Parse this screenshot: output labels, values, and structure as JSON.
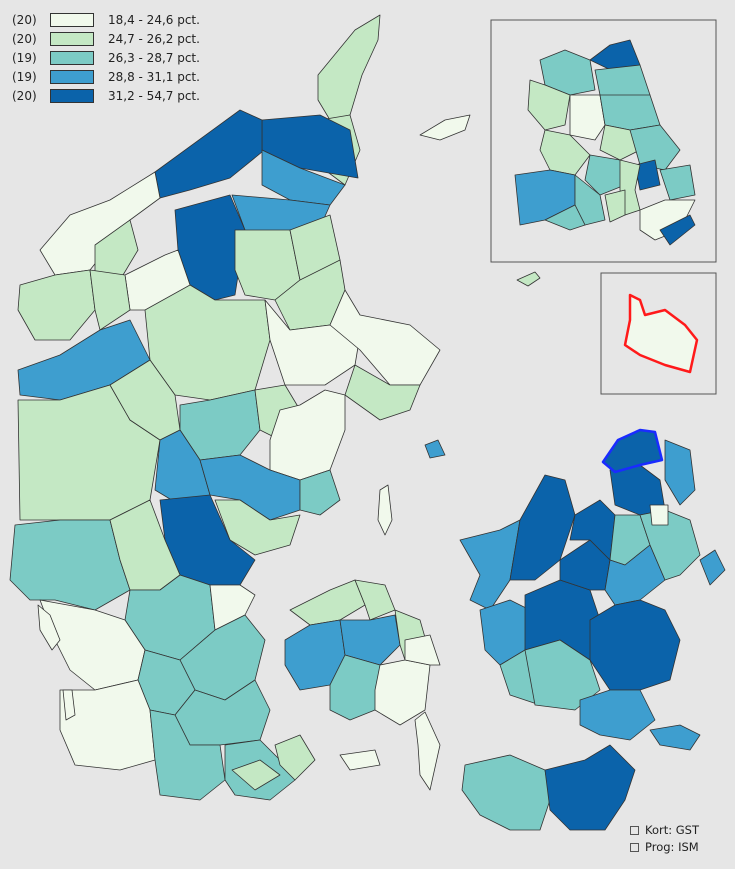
{
  "colors": {
    "background": "#e6e6e6",
    "border": "#333333",
    "c1": "#f1f9ec",
    "c2": "#c4e8c4",
    "c3": "#7ccbc5",
    "c4": "#3e9ecf",
    "c5": "#0b63aa",
    "highlight_red": "#ff1a1a",
    "highlight_blue": "#1a2bff"
  },
  "legend": [
    {
      "count": "(20)",
      "label": "18,4 - 24,6 pct.",
      "color": "#f1f9ec"
    },
    {
      "count": "(20)",
      "label": "24,7 - 26,2 pct.",
      "color": "#c4e8c4"
    },
    {
      "count": "(19)",
      "label": "26,3 - 28,7 pct.",
      "color": "#7ccbc5"
    },
    {
      "count": "(19)",
      "label": "28,8 - 31,1 pct.",
      "color": "#3e9ecf"
    },
    {
      "count": "(20)",
      "label": "31,2 - 54,7 pct.",
      "color": "#0b63aa"
    }
  ],
  "credits": {
    "kort": "Kort: GST",
    "prog": "Prog: ISM"
  }
}
